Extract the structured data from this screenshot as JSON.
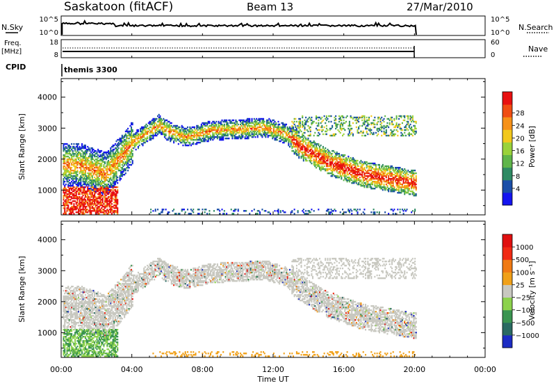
{
  "header": {
    "station": "Saskatoon (fitACF)",
    "beam": "Beam 13",
    "date": "27/Mar/2010"
  },
  "top_panels": {
    "nsky_label": "N.Sky",
    "nsky_ticks": [
      "10^5",
      "10^0"
    ],
    "nsearch_label": "N.Search",
    "nsearch_ticks": [
      "10^5",
      "10^0"
    ],
    "freq_label": "Freq.",
    "freq_unit": "[MHz]",
    "freq_ticks": [
      "18",
      "8"
    ],
    "nave_label": "Nave",
    "nave_ticks": [
      "60",
      "0"
    ],
    "cpid_label": "CPID",
    "cpid_value": "themis 3300"
  },
  "chart_data": [
    {
      "type": "heatmap",
      "name": "power",
      "ylabel": "Slant Range [km]",
      "yticks": [
        "1000",
        "2000",
        "3000",
        "4000"
      ],
      "ylim": [
        200,
        4600
      ],
      "xlim": [
        0,
        24
      ],
      "colorbar": {
        "label": "Power [dB]",
        "ticks": [
          "4",
          "8",
          "12",
          "16",
          "20",
          "24",
          "28"
        ],
        "colors": [
          "#1414f0",
          "#1a4ea8",
          "#2e8a63",
          "#5fb54a",
          "#9ad23a",
          "#f2c81c",
          "#f69118",
          "#f04d12",
          "#e81010"
        ]
      }
    },
    {
      "type": "heatmap",
      "name": "velocity",
      "ylabel": "Slant Range [km]",
      "yticks": [
        "1000",
        "2000",
        "3000",
        "4000"
      ],
      "ylim": [
        200,
        4600
      ],
      "xlim": [
        0,
        24
      ],
      "colorbar": {
        "label": "Velocity [m s⁻¹]",
        "ticks": [
          "1000",
          "500",
          "100",
          "25",
          "−25",
          "−100",
          "−500",
          "−1000"
        ],
        "colors": [
          "#1c2cc4",
          "#2a6a62",
          "#3a9450",
          "#8cd24c",
          "#c8c8c0",
          "#f0a018",
          "#f07a14",
          "#f02a14",
          "#e01010"
        ]
      }
    }
  ],
  "x_axis": {
    "ticks": [
      "00:00",
      "04:00",
      "08:00",
      "12:00",
      "16:00",
      "20:00",
      "00:00"
    ],
    "label": "Time UT"
  }
}
